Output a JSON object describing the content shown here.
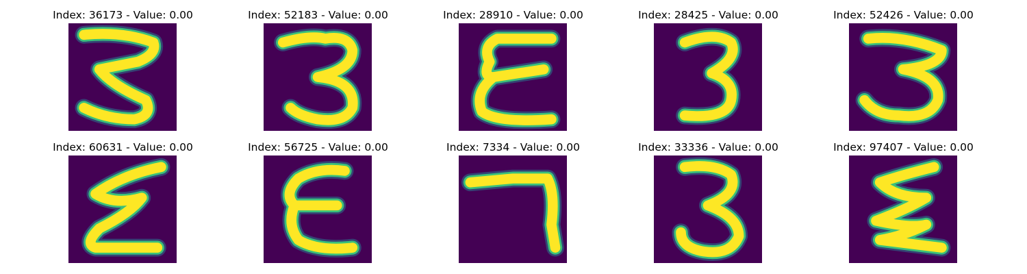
{
  "colors": {
    "background": "#440154",
    "stroke": "#fde725",
    "edge": "#3ac07a",
    "halo": "#2a788e"
  },
  "panels": [
    {
      "title": "Index: 36173 - Value: 0.00",
      "glyph": "3"
    },
    {
      "title": "Index: 52183 - Value: 0.00",
      "glyph": "3"
    },
    {
      "title": "Index: 28910 - Value: 0.00",
      "glyph": "ε"
    },
    {
      "title": "Index: 28425 - Value: 0.00",
      "glyph": "3"
    },
    {
      "title": "Index: 52426 - Value: 0.00",
      "glyph": "3"
    },
    {
      "title": "Index: 60631 - Value: 0.00",
      "glyph": "ε"
    },
    {
      "title": "Index: 56725 - Value: 0.00",
      "glyph": "ε"
    },
    {
      "title": "Index: 7334 - Value: 0.00",
      "glyph": "7"
    },
    {
      "title": "Index: 33336 - Value: 0.00",
      "glyph": "3"
    },
    {
      "title": "Index: 97407 - Value: 0.00",
      "glyph": "ε"
    }
  ]
}
